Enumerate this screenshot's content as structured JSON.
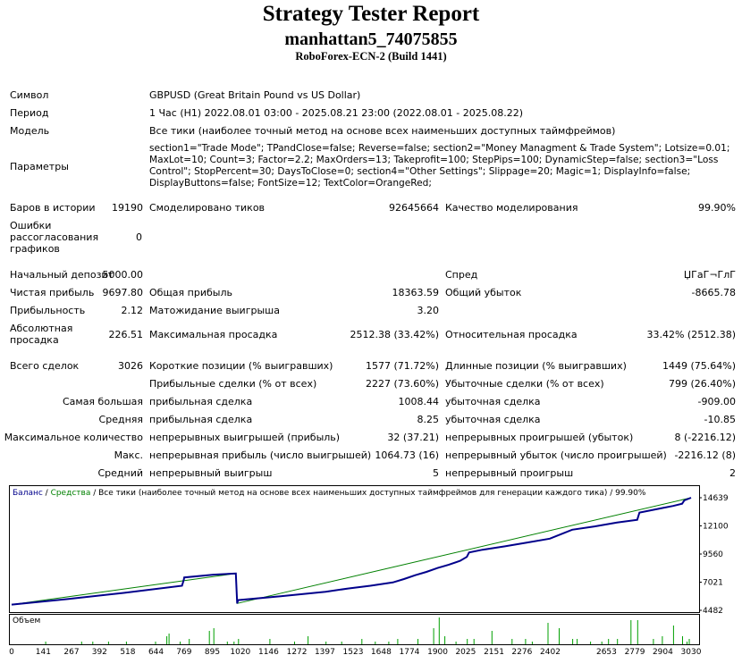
{
  "header": {
    "title": "Strategy Tester Report",
    "account": "manhattan5_74075855",
    "server": "RoboForex-ECN-2 (Build 1441)"
  },
  "info": {
    "symbol_label": "Символ",
    "symbol_value": "GBPUSD (Great Britain Pound vs US Dollar)",
    "period_label": "Период",
    "period_value": "1 Час (H1) 2022.08.01 03:00 - 2025.08.21 23:00 (2022.08.01 - 2025.08.22)",
    "model_label": "Модель",
    "model_value": "Все тики (наиболее точный метод на основе всех наименьших доступных таймфреймов)",
    "params_label": "Параметры",
    "params_value": "section1=\"Trade Mode\"; TPandClose=false; Reverse=false; section2=\"Money Managment & Trade System\"; Lotsize=0.01; MaxLot=10; Count=3; Factor=2.2; MaxOrders=13; Takeprofit=100; StepPips=100; DynamicStep=false; section3=\"Loss Control\"; StopPercent=30; DaysToClose=0; section4=\"Other Settings\"; Slippage=20; Magic=1; DisplayInfo=false; DisplayButtons=false; FontSize=12; TextColor=OrangeRed;"
  },
  "stats": {
    "bars_label": "Баров в истории",
    "bars_value": "19190",
    "ticks_label": "Смоделировано тиков",
    "ticks_value": "92645664",
    "quality_label": "Качество моделирования",
    "quality_value": "99.90%",
    "errors_label": "Ошибки рассогласования графиков",
    "errors_value": "0",
    "deposit_label": "Начальный депозит",
    "deposit_value": "5000.00",
    "spread_label": "Спред",
    "spread_value": "ЏГаГ¬ГлГ",
    "net_label": "Чистая прибыль",
    "net_value": "9697.80",
    "gross_profit_label": "Общая прибыль",
    "gross_profit_value": "18363.59",
    "gross_loss_label": "Общий убыток",
    "gross_loss_value": "-8665.78",
    "pf_label": "Прибыльность",
    "pf_value": "2.12",
    "payoff_label": "Матожидание выигрыша",
    "payoff_value": "3.20",
    "abs_dd_label": "Абсолютная просадка",
    "abs_dd_value": "226.51",
    "max_dd_label": "Максимальная просадка",
    "max_dd_value": "2512.38 (33.42%)",
    "rel_dd_label": "Относительная просадка",
    "rel_dd_value": "33.42% (2512.38)",
    "total_label": "Всего сделок",
    "total_value": "3026",
    "short_label": "Короткие позиции (% выигравших)",
    "short_value": "1577 (71.72%)",
    "long_label": "Длинные позиции (% выигравших)",
    "long_value": "1449 (75.64%)",
    "profit_trades_label": "Прибыльные сделки (% от всех)",
    "profit_trades_value": "2227 (73.60%)",
    "loss_trades_label": "Убыточные сделки (% от всех)",
    "loss_trades_value": "799 (26.40%)",
    "largest_label": "Самая большая",
    "largest_profit_label": "прибыльная сделка",
    "largest_profit_value": "1008.44",
    "largest_loss_label": "убыточная сделка",
    "largest_loss_value": "-909.00",
    "average_label": "Средняя",
    "average_profit_label": "прибыльная сделка",
    "average_profit_value": "8.25",
    "average_loss_label": "убыточная сделка",
    "average_loss_value": "-10.85",
    "max_count_label": "Максимальное количество",
    "max_cons_wins_label": "непрерывных выигрышей (прибыль)",
    "max_cons_wins_value": "32 (37.21)",
    "max_cons_losses_label": "непрерывных проигрышей (убыток)",
    "max_cons_losses_value": "8 (-2216.12)",
    "max_label": "Макс.",
    "max_cons_profit_label": "непрерывная прибыль (число выигрышей)",
    "max_cons_profit_value": "1064.73 (16)",
    "max_cons_loss_label": "непрерывный убыток (число проигрышей)",
    "max_cons_loss_value": "-2216.12 (8)",
    "avg_label": "Средний",
    "avg_cons_wins_label": "непрерывный выигрыш",
    "avg_cons_wins_value": "5",
    "avg_cons_losses_label": "непрерывный проигрыш",
    "avg_cons_losses_value": "2"
  },
  "chart_data": {
    "type": "line",
    "legend": {
      "balance": "Баланс",
      "separator": " / ",
      "equity": "Средства",
      "rest": " / Все тики (наиболее точный метод на основе всех наименьших доступных таймфреймов для генерации каждого тика) / 99.90%"
    },
    "volume_label": "Объем",
    "y_ticks": [
      "14639",
      "12100",
      "9560",
      "7021",
      "4482"
    ],
    "x_ticks": [
      "0",
      "141",
      "267",
      "392",
      "518",
      "644",
      "769",
      "895",
      "1020",
      "1146",
      "1272",
      "1397",
      "1523",
      "1648",
      "1774",
      "1900",
      "2025",
      "2151",
      "2276",
      "2402",
      "2653",
      "2779",
      "2904",
      "3030"
    ],
    "ylim": [
      4482,
      14639
    ],
    "xlim": [
      0,
      3030
    ],
    "colors": {
      "balance": "#00008b",
      "equity": "#008000",
      "volume": "#00a000",
      "axis": "#000000"
    },
    "series": [
      {
        "name": "Баланс",
        "x": [
          0,
          250,
          500,
          760,
          768,
          770,
          900,
          1000,
          1006,
          1010,
          1200,
          1400,
          1500,
          1600,
          1700,
          1750,
          1800,
          1850,
          1900,
          1950,
          2000,
          2030,
          2040,
          2100,
          2200,
          2300,
          2400,
          2450,
          2500,
          2600,
          2700,
          2790,
          2800,
          2850,
          2900,
          2950,
          2990,
          3000,
          3030
        ],
        "y": [
          5000,
          5500,
          6050,
          6700,
          7250,
          7450,
          7700,
          7800,
          5100,
          5400,
          5750,
          6150,
          6450,
          6700,
          7000,
          7300,
          7650,
          7950,
          8300,
          8600,
          8950,
          9300,
          9700,
          9950,
          10250,
          10600,
          10950,
          11350,
          11750,
          12050,
          12400,
          12650,
          13300,
          13500,
          13700,
          13900,
          14100,
          14400,
          14639
        ]
      },
      {
        "name": "Средства",
        "x": [
          0,
          1000,
          1006,
          3030
        ],
        "y": [
          5000,
          7800,
          5100,
          14639
        ]
      }
    ],
    "volume": {
      "x": [
        150,
        310,
        360,
        430,
        510,
        640,
        690,
        700,
        750,
        790,
        880,
        900,
        960,
        990,
        1010,
        1150,
        1260,
        1320,
        1400,
        1470,
        1560,
        1620,
        1680,
        1720,
        1810,
        1880,
        1905,
        1930,
        1980,
        2030,
        2060,
        2140,
        2230,
        2290,
        2320,
        2390,
        2440,
        2500,
        2520,
        2580,
        2630,
        2660,
        2700,
        2760,
        2790,
        2860,
        2900,
        2950,
        2990,
        3010,
        3020
      ],
      "y": [
        1,
        1,
        1,
        1,
        1,
        1,
        3,
        4,
        1,
        2,
        5,
        6,
        1,
        1,
        2,
        2,
        1,
        3,
        1,
        1,
        2,
        1,
        1,
        2,
        2,
        6,
        10,
        3,
        1,
        2,
        2,
        5,
        2,
        2,
        1,
        8,
        6,
        2,
        2,
        1,
        1,
        2,
        2,
        9,
        9,
        2,
        3,
        7,
        3,
        1,
        2
      ]
    }
  }
}
